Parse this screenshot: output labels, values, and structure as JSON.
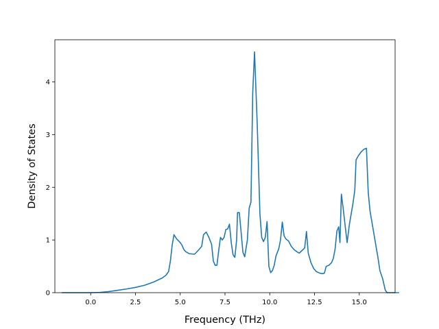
{
  "chart_data": {
    "type": "line",
    "title": "",
    "xlabel": "Frequency (THz)",
    "ylabel": "Density of States",
    "xlim": [
      -2.0,
      17.0
    ],
    "ylim": [
      0,
      4.8
    ],
    "xticks": [
      0.0,
      2.5,
      5.0,
      7.5,
      10.0,
      12.5,
      15.0
    ],
    "xtick_labels": [
      "0.0",
      "2.5",
      "5.0",
      "7.5",
      "10.0",
      "12.5",
      "15.0"
    ],
    "yticks": [
      0,
      1,
      2,
      3,
      4
    ],
    "ytick_labels": [
      "0",
      "1",
      "2",
      "3",
      "4"
    ],
    "grid": false,
    "line_color": "#1f77b4",
    "series": [
      {
        "points": [
          [
            -1.6,
            0
          ],
          [
            0.0,
            0.0
          ],
          [
            0.5,
            0.005
          ],
          [
            1.0,
            0.02
          ],
          [
            1.5,
            0.045
          ],
          [
            2.0,
            0.07
          ],
          [
            2.5,
            0.1
          ],
          [
            3.0,
            0.14
          ],
          [
            3.5,
            0.2
          ],
          [
            4.0,
            0.28
          ],
          [
            4.2,
            0.33
          ],
          [
            4.35,
            0.4
          ],
          [
            4.45,
            0.6
          ],
          [
            4.55,
            0.9
          ],
          [
            4.65,
            1.1
          ],
          [
            4.8,
            1.02
          ],
          [
            5.0,
            0.95
          ],
          [
            5.1,
            0.9
          ],
          [
            5.2,
            0.82
          ],
          [
            5.3,
            0.78
          ],
          [
            5.5,
            0.74
          ],
          [
            5.8,
            0.73
          ],
          [
            6.0,
            0.8
          ],
          [
            6.2,
            0.88
          ],
          [
            6.3,
            1.1
          ],
          [
            6.45,
            1.15
          ],
          [
            6.6,
            1.05
          ],
          [
            6.75,
            0.92
          ],
          [
            6.85,
            0.6
          ],
          [
            6.95,
            0.52
          ],
          [
            7.05,
            0.52
          ],
          [
            7.15,
            0.8
          ],
          [
            7.25,
            1.05
          ],
          [
            7.35,
            1.0
          ],
          [
            7.45,
            1.05
          ],
          [
            7.55,
            1.2
          ],
          [
            7.65,
            1.21
          ],
          [
            7.75,
            1.3
          ],
          [
            7.85,
            0.95
          ],
          [
            7.95,
            0.72
          ],
          [
            8.05,
            0.67
          ],
          [
            8.15,
            1.0
          ],
          [
            8.2,
            1.52
          ],
          [
            8.3,
            1.52
          ],
          [
            8.4,
            1.15
          ],
          [
            8.5,
            0.77
          ],
          [
            8.6,
            0.68
          ],
          [
            8.75,
            1.0
          ],
          [
            8.85,
            1.6
          ],
          [
            8.95,
            1.72
          ],
          [
            9.05,
            3.8
          ],
          [
            9.15,
            4.57
          ],
          [
            9.3,
            3.2
          ],
          [
            9.45,
            1.5
          ],
          [
            9.55,
            1.05
          ],
          [
            9.65,
            0.97
          ],
          [
            9.75,
            1.05
          ],
          [
            9.85,
            1.35
          ],
          [
            9.95,
            0.5
          ],
          [
            10.05,
            0.38
          ],
          [
            10.15,
            0.42
          ],
          [
            10.25,
            0.52
          ],
          [
            10.35,
            0.7
          ],
          [
            10.5,
            0.83
          ],
          [
            10.6,
            1.0
          ],
          [
            10.7,
            1.34
          ],
          [
            10.8,
            1.08
          ],
          [
            10.9,
            1.02
          ],
          [
            11.05,
            0.98
          ],
          [
            11.2,
            0.88
          ],
          [
            11.35,
            0.82
          ],
          [
            11.5,
            0.78
          ],
          [
            11.65,
            0.75
          ],
          [
            11.8,
            0.8
          ],
          [
            11.95,
            0.85
          ],
          [
            12.05,
            1.16
          ],
          [
            12.15,
            0.75
          ],
          [
            12.3,
            0.57
          ],
          [
            12.45,
            0.46
          ],
          [
            12.6,
            0.4
          ],
          [
            12.8,
            0.37
          ],
          [
            12.95,
            0.36
          ],
          [
            13.05,
            0.37
          ],
          [
            13.15,
            0.5
          ],
          [
            13.3,
            0.52
          ],
          [
            13.45,
            0.57
          ],
          [
            13.55,
            0.65
          ],
          [
            13.65,
            0.83
          ],
          [
            13.75,
            1.17
          ],
          [
            13.85,
            1.25
          ],
          [
            13.92,
            0.95
          ],
          [
            14.0,
            1.87
          ],
          [
            14.1,
            1.6
          ],
          [
            14.2,
            1.3
          ],
          [
            14.32,
            0.95
          ],
          [
            14.45,
            1.3
          ],
          [
            14.55,
            1.5
          ],
          [
            14.65,
            1.7
          ],
          [
            14.75,
            1.95
          ],
          [
            14.82,
            2.52
          ],
          [
            14.95,
            2.6
          ],
          [
            15.1,
            2.67
          ],
          [
            15.25,
            2.72
          ],
          [
            15.4,
            2.74
          ],
          [
            15.5,
            1.9
          ],
          [
            15.6,
            1.55
          ],
          [
            15.75,
            1.25
          ],
          [
            15.9,
            0.95
          ],
          [
            16.05,
            0.65
          ],
          [
            16.15,
            0.42
          ],
          [
            16.3,
            0.27
          ],
          [
            16.45,
            0.05
          ],
          [
            16.55,
            0.0
          ],
          [
            17.2,
            0.0
          ]
        ]
      }
    ]
  }
}
